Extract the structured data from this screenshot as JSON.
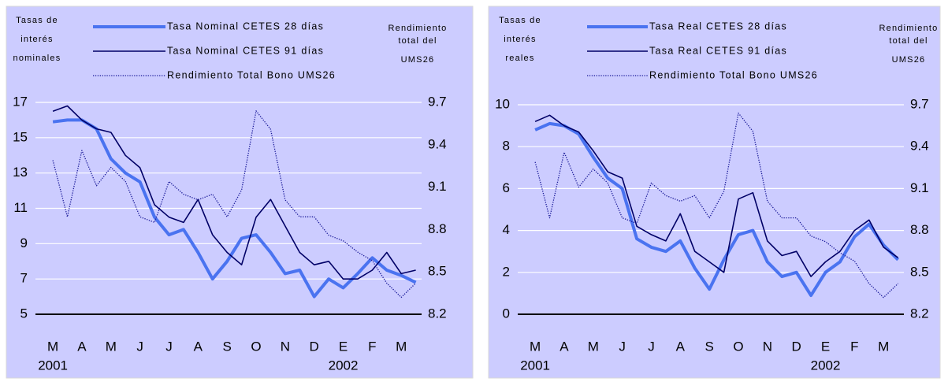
{
  "chart_data": [
    {
      "type": "line",
      "left_axis_label": [
        "Tasas de",
        "interés",
        "nominales"
      ],
      "right_axis_label": [
        "Rendimiento",
        "total del",
        "UMS26"
      ],
      "x": [
        0,
        0.5,
        1,
        1.5,
        2,
        2.5,
        3,
        3.5,
        4,
        4.5,
        5,
        5.5,
        6,
        6.5,
        7,
        7.5,
        8,
        8.5,
        9,
        9.5,
        10,
        10.5,
        11,
        11.5,
        12,
        12.5
      ],
      "series": [
        {
          "name": "Tasa Nominal CETES 28 días",
          "color": "#4a73f0",
          "line_style": "thick",
          "values": [
            15.9,
            16.0,
            16.0,
            15.5,
            13.8,
            13.0,
            12.5,
            10.5,
            9.5,
            9.8,
            8.5,
            7.0,
            8.0,
            9.3,
            9.5,
            8.5,
            7.3,
            7.5,
            6.0,
            7.0,
            6.5,
            7.3,
            8.2,
            7.5,
            7.2,
            6.8
          ]
        },
        {
          "name": "Tasa Nominal CETES 91 días",
          "color": "#000066",
          "line_style": "thin",
          "values": [
            16.5,
            16.8,
            16.0,
            15.5,
            15.3,
            14.0,
            13.3,
            11.2,
            10.5,
            10.2,
            11.5,
            9.5,
            8.5,
            7.8,
            10.5,
            11.5,
            10.0,
            8.5,
            7.8,
            8.0,
            7.0,
            7.0,
            7.5,
            8.5,
            7.3,
            7.5
          ]
        },
        {
          "name": "Rendimiento Total Bono UMS26",
          "color": "#1a1a99",
          "line_style": "dotted",
          "axis": "y2",
          "values": [
            9.29,
            8.89,
            9.36,
            9.11,
            9.24,
            9.14,
            8.89,
            8.85,
            9.14,
            9.05,
            9.01,
            9.05,
            8.89,
            9.08,
            9.64,
            9.51,
            9.01,
            8.89,
            8.89,
            8.76,
            8.72,
            8.64,
            8.58,
            8.42,
            8.32,
            8.42
          ]
        }
      ],
      "xlim": [
        -0.6,
        12.7
      ],
      "xticks": [
        {
          "value": 0,
          "label": "M"
        },
        {
          "value": 1,
          "label": "A"
        },
        {
          "value": 2,
          "label": "M"
        },
        {
          "value": 3,
          "label": "J"
        },
        {
          "value": 4,
          "label": "J"
        },
        {
          "value": 5,
          "label": "A"
        },
        {
          "value": 6,
          "label": "S"
        },
        {
          "value": 7,
          "label": "O"
        },
        {
          "value": 8,
          "label": "N"
        },
        {
          "value": 9,
          "label": "D"
        },
        {
          "value": 10,
          "label": "E"
        },
        {
          "value": 11,
          "label": "F"
        },
        {
          "value": 12,
          "label": "M"
        }
      ],
      "year_labels": [
        {
          "value": 0,
          "label": "2001"
        },
        {
          "value": 10,
          "label": "2002"
        }
      ],
      "ylim": [
        5,
        17
      ],
      "yticks": [
        5,
        7,
        9,
        11,
        13,
        15,
        17
      ],
      "y2lim": [
        8.2,
        9.7
      ],
      "y2ticks": [
        8.2,
        8.5,
        8.8,
        9.1,
        9.4,
        9.7
      ],
      "grid": true
    },
    {
      "type": "line",
      "left_axis_label": [
        "Tasas de",
        "interés",
        "reales"
      ],
      "right_axis_label": [
        "Rendimiento",
        "total del",
        "UMS26"
      ],
      "x": [
        0,
        0.5,
        1,
        1.5,
        2,
        2.5,
        3,
        3.5,
        4,
        4.5,
        5,
        5.5,
        6,
        6.5,
        7,
        7.5,
        8,
        8.5,
        9,
        9.5,
        10,
        10.5,
        11,
        11.5,
        12,
        12.5
      ],
      "series": [
        {
          "name": "Tasa Real CETES 28 días",
          "color": "#4a73f0",
          "line_style": "thick",
          "values": [
            8.8,
            9.1,
            9.0,
            8.6,
            7.5,
            6.5,
            6.0,
            3.6,
            3.2,
            3.0,
            3.5,
            2.2,
            1.2,
            2.6,
            3.8,
            4.0,
            2.5,
            1.8,
            2.0,
            0.9,
            2.0,
            2.5,
            3.7,
            4.3,
            3.3,
            2.6
          ]
        },
        {
          "name": "Tasa Real CETES 91 días",
          "color": "#000066",
          "line_style": "thin",
          "values": [
            9.2,
            9.5,
            9.0,
            8.7,
            7.8,
            6.8,
            6.5,
            4.2,
            3.8,
            3.5,
            4.8,
            3.0,
            2.5,
            2.0,
            5.5,
            5.8,
            3.5,
            2.8,
            3.0,
            1.8,
            2.5,
            3.0,
            4.0,
            4.5,
            3.2,
            2.7
          ]
        },
        {
          "name": "Rendimiento Total Bono UMS26",
          "color": "#1a1a99",
          "line_style": "dotted",
          "axis": "y2",
          "values": [
            9.29,
            8.89,
            9.36,
            9.11,
            9.24,
            9.14,
            8.89,
            8.85,
            9.14,
            9.05,
            9.01,
            9.05,
            8.89,
            9.08,
            9.64,
            9.51,
            9.01,
            8.89,
            8.89,
            8.76,
            8.72,
            8.64,
            8.58,
            8.42,
            8.32,
            8.42
          ]
        }
      ],
      "xlim": [
        -0.6,
        12.7
      ],
      "xticks": [
        {
          "value": 0,
          "label": "M"
        },
        {
          "value": 1,
          "label": "A"
        },
        {
          "value": 2,
          "label": "M"
        },
        {
          "value": 3,
          "label": "J"
        },
        {
          "value": 4,
          "label": "J"
        },
        {
          "value": 5,
          "label": "A"
        },
        {
          "value": 6,
          "label": "S"
        },
        {
          "value": 7,
          "label": "O"
        },
        {
          "value": 8,
          "label": "N"
        },
        {
          "value": 9,
          "label": "D"
        },
        {
          "value": 10,
          "label": "E"
        },
        {
          "value": 11,
          "label": "F"
        },
        {
          "value": 12,
          "label": "M"
        }
      ],
      "year_labels": [
        {
          "value": 0,
          "label": "2001"
        },
        {
          "value": 10,
          "label": "2002"
        }
      ],
      "ylim": [
        0,
        10
      ],
      "yticks": [
        0,
        2,
        4,
        6,
        8,
        10
      ],
      "y2lim": [
        8.2,
        9.7
      ],
      "y2ticks": [
        8.2,
        8.5,
        8.8,
        9.1,
        9.4,
        9.7
      ],
      "grid": true
    }
  ]
}
